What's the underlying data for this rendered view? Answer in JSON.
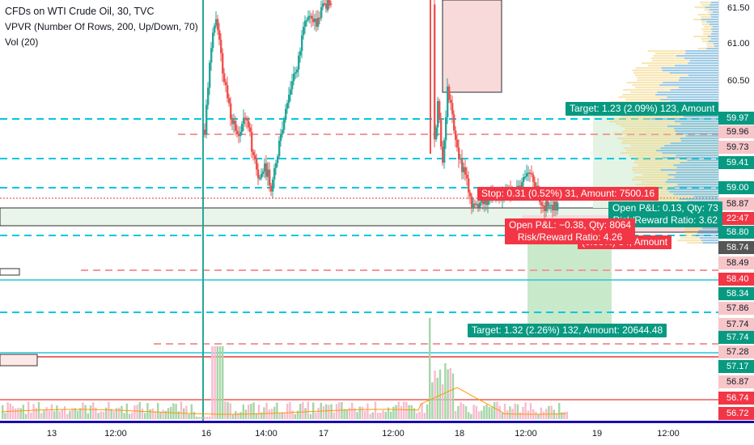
{
  "legend": {
    "symbol": "CFDs on WTI Crude Oil, 30, TVC",
    "indicator": "VPVR (Number Of Rows, 200, Up/Down, 70)",
    "volume": "Vol (20)"
  },
  "price_axis": {
    "ticks": [
      "61.50",
      "61.00",
      "60.50"
    ],
    "badges": [
      {
        "label": "59.97",
        "color": "#089981",
        "text_color": "#ffffff"
      },
      {
        "label": "59.96",
        "color": "#f7c6c9",
        "text_color": "#131722"
      },
      {
        "label": "59.73",
        "color": "#f7c6c9",
        "text_color": "#131722"
      },
      {
        "label": "59.41",
        "color": "#089981",
        "text_color": "#ffffff"
      },
      {
        "label": "59.00",
        "color": "#089981",
        "text_color": "#ffffff"
      },
      {
        "label": "58.87",
        "color": "#f7c6c9",
        "text_color": "#131722"
      },
      {
        "label": "22:47",
        "color": "#f23645",
        "text_color": "#ffffff"
      },
      {
        "label": "58.80",
        "color": "#089981",
        "text_color": "#ffffff"
      },
      {
        "label": "58.74",
        "color": "#555555",
        "text_color": "#ffffff"
      },
      {
        "label": "58.49",
        "color": "#f7c6c9",
        "text_color": "#131722"
      },
      {
        "label": "58.40",
        "color": "#f23645",
        "text_color": "#ffffff"
      },
      {
        "label": "58.34",
        "color": "#089981",
        "text_color": "#ffffff"
      },
      {
        "label": "57.86",
        "color": "#f7c6c9",
        "text_color": "#131722"
      },
      {
        "label": "57.74",
        "color": "#f7c6c9",
        "text_color": "#131722"
      },
      {
        "label": "57.74",
        "color": "#089981",
        "text_color": "#ffffff"
      },
      {
        "label": "57.28",
        "color": "#f7c6c9",
        "text_color": "#131722"
      },
      {
        "label": "57.17",
        "color": "#089981",
        "text_color": "#ffffff"
      },
      {
        "label": "56.87",
        "color": "#f7c6c9",
        "text_color": "#131722"
      },
      {
        "label": "56.74",
        "color": "#f23645",
        "text_color": "#ffffff"
      },
      {
        "label": "56.72",
        "color": "#f23645",
        "text_color": "#ffffff"
      }
    ]
  },
  "time_axis": [
    "13",
    "12:00",
    "16",
    "14:00",
    "17",
    "12:00",
    "18",
    "12:00",
    "19",
    "12:00"
  ],
  "trade_labels": {
    "long_target": "Target: 1.23 (2.09%) 123, Amount",
    "short_stop": "Stop: 0.31 (0.52%) 31, Amount: 7500.16",
    "long_pnl": "Open P&L: 0.13, Qty: 73",
    "long_rr": "Risk/Reward Ratio: 3.62",
    "short_pnl": "Open P&L: −0.38, Qty: 8064",
    "short_rr": "Risk/Reward Ratio: 4.26",
    "long_stop": "(0.58%) 34, Amount",
    "short_target": "Target: 1.32 (2.26%) 132, Amount: 20644.48"
  },
  "colors": {
    "up": "#26a69a",
    "down": "#ef5350",
    "vp_up": "#5fa8d3",
    "vp_down": "#f2d37a",
    "accent_line": "#1a0dab"
  }
}
